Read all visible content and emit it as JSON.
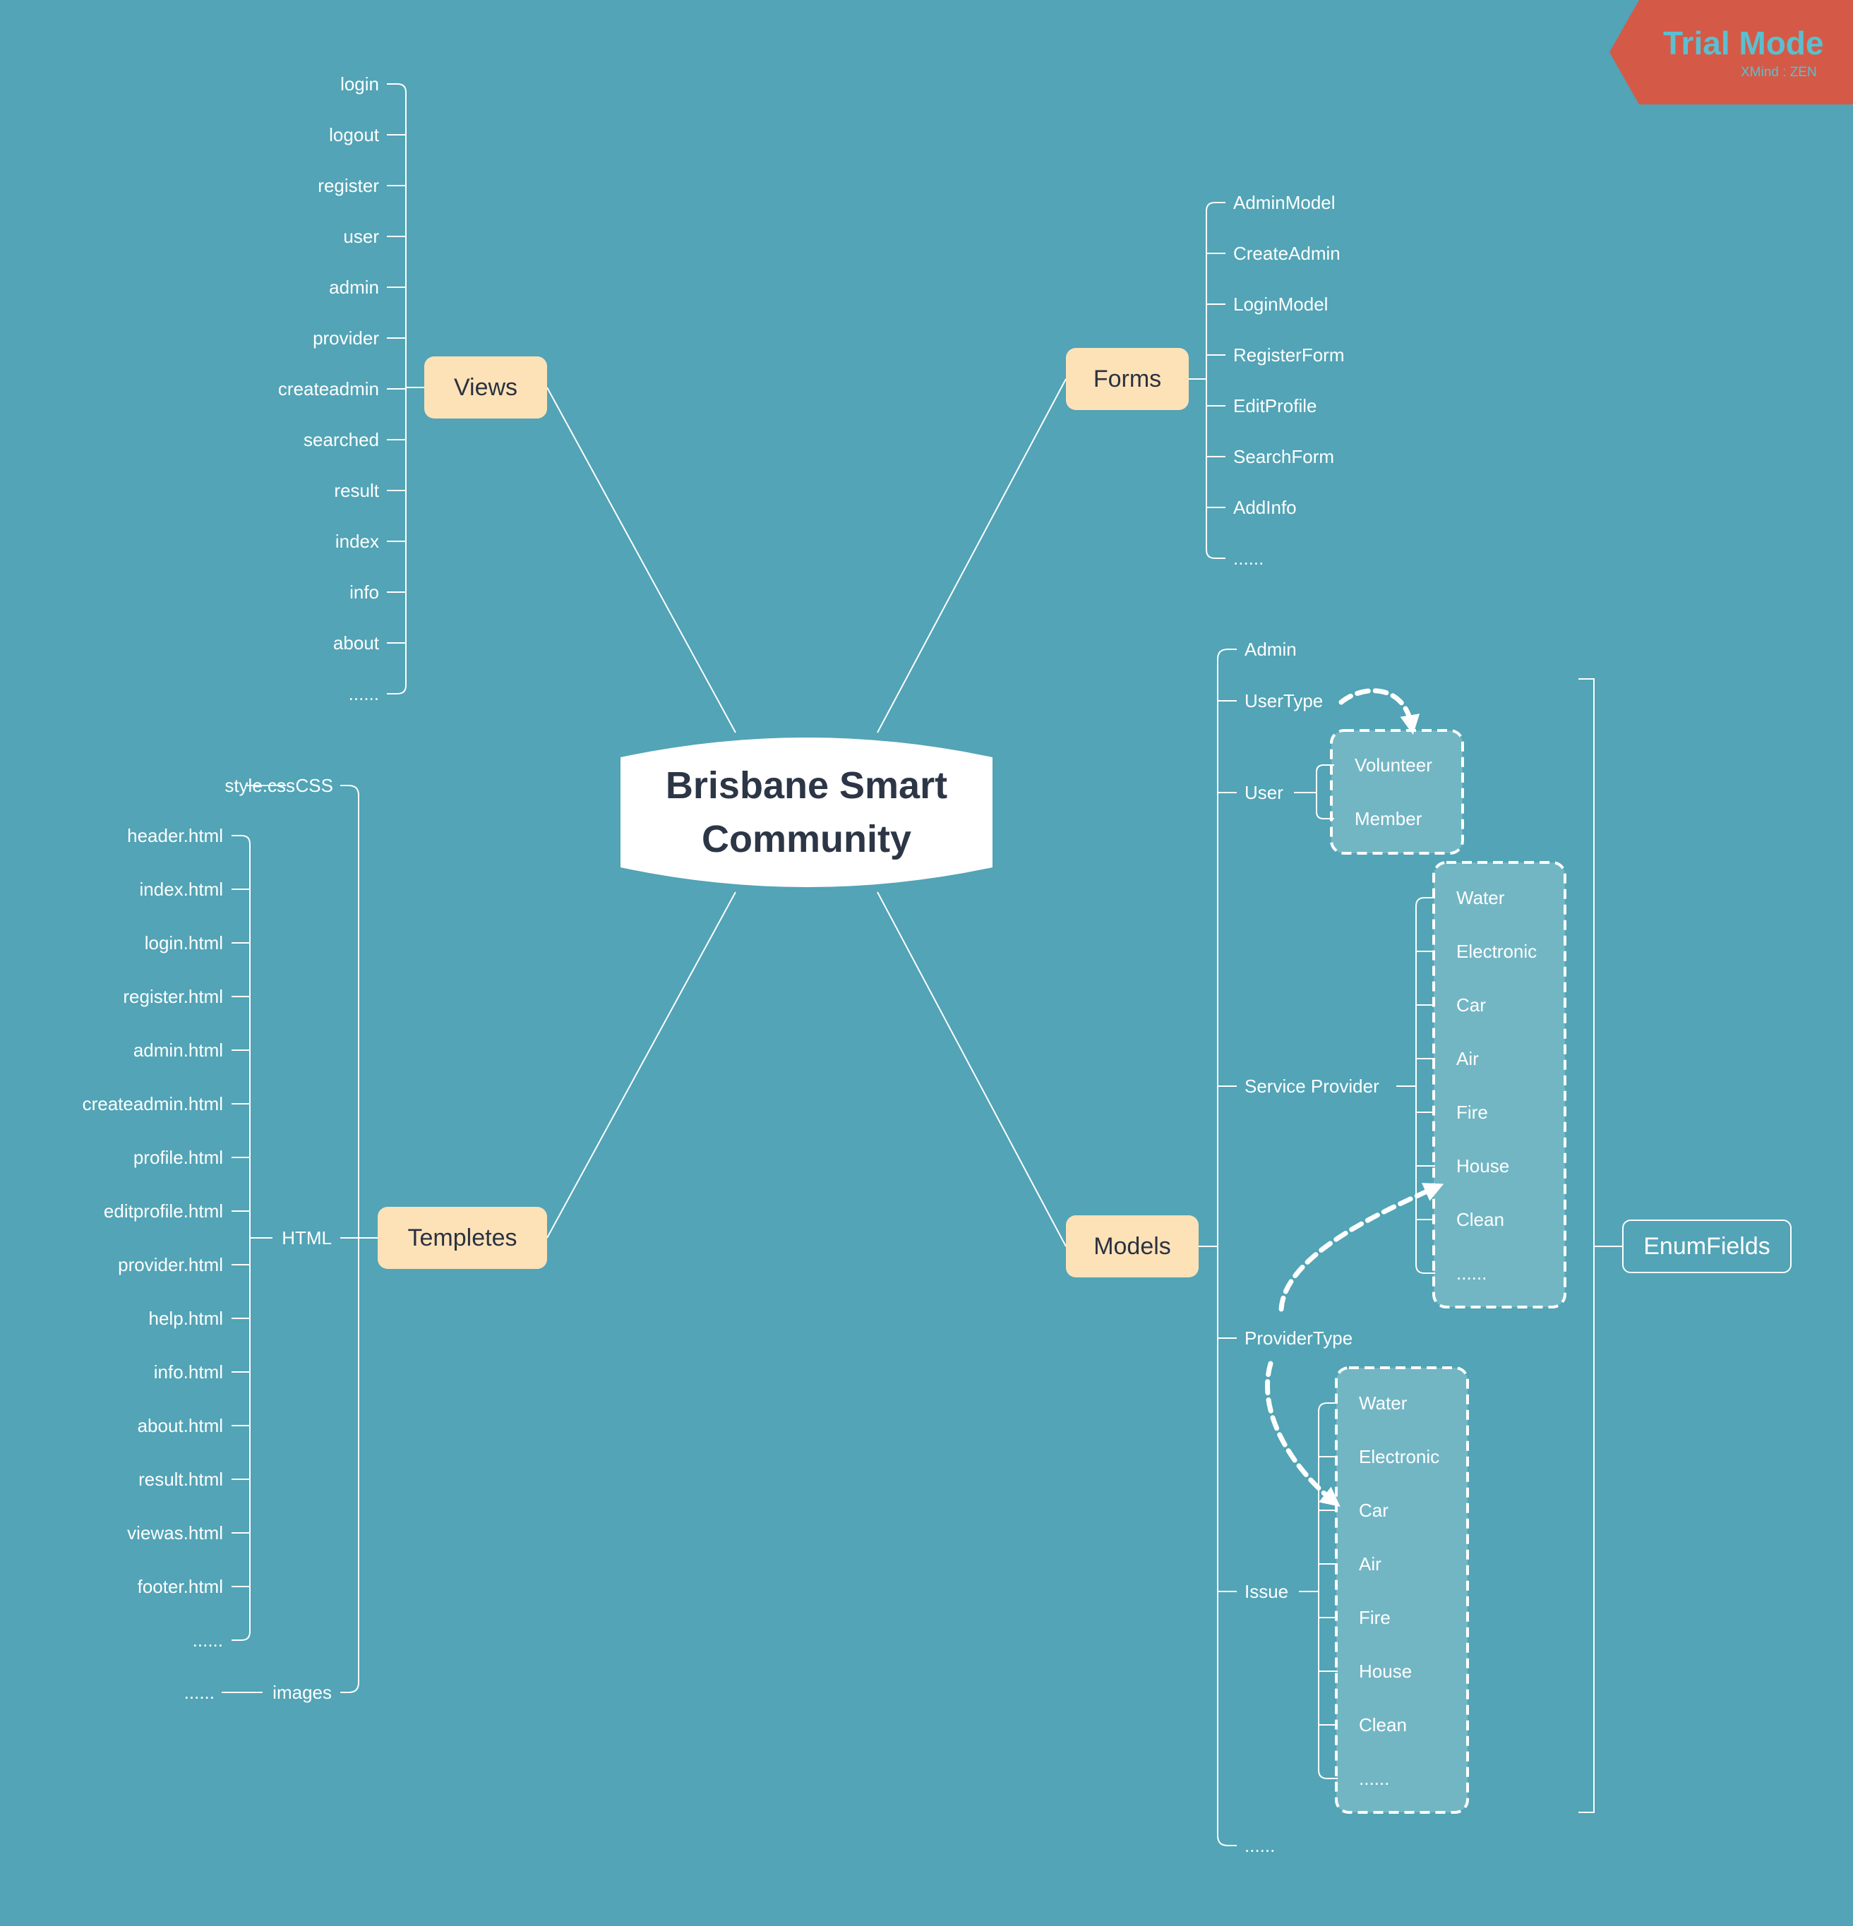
{
  "colors": {
    "background": "#52a4b6",
    "branch_fill": "#fde2b8",
    "central_fill": "#ffffff",
    "line": "#ffffff",
    "enum_box_fill": "#72b6c4",
    "trial_banner": "#d45a47",
    "trial_text": "#5bbfcf"
  },
  "central": {
    "line1": "Brisbane Smart",
    "line2": "Community"
  },
  "views": {
    "label": "Views",
    "items": [
      "login",
      "logout",
      "register",
      "user",
      "admin",
      "provider",
      "createadmin",
      "searched",
      "result",
      "index",
      "info",
      "about",
      "......"
    ]
  },
  "forms": {
    "label": "Forms",
    "items": [
      "AdminModel",
      "CreateAdmin",
      "LoginModel",
      "RegisterForm",
      "EditProfile",
      "SearchForm",
      "AddInfo",
      "......"
    ]
  },
  "templetes": {
    "label": "Templetes",
    "css": {
      "label": "CSS",
      "file": "style.css"
    },
    "html": {
      "label": "HTML",
      "items": [
        "header.html",
        "index.html",
        "login.html",
        "register.html",
        "admin.html",
        "createadmin.html",
        "profile.html",
        "editprofile.html",
        "provider.html",
        "help.html",
        "info.html",
        "about.html",
        "result.html",
        "viewas.html",
        "footer.html",
        "......"
      ]
    },
    "images": {
      "label": "images",
      "child": "......"
    }
  },
  "models": {
    "label": "Models",
    "admin": "Admin",
    "usertype": "UserType",
    "user": {
      "label": "User",
      "children": [
        "Volunteer",
        "Member"
      ]
    },
    "service_provider": {
      "label": "Service Provider",
      "children": [
        "Water",
        "Electronic",
        "Car",
        "Air",
        "Fire",
        "House",
        "Clean",
        "......"
      ]
    },
    "providertype": "ProviderType",
    "issue": {
      "label": "Issue",
      "children": [
        "Water",
        "Electronic",
        "Car",
        "Air",
        "Fire",
        "House",
        "Clean",
        "......"
      ]
    },
    "more": "......",
    "enum_label": "EnumFields"
  },
  "trial": {
    "title": "Trial Mode",
    "subtitle": "XMind : ZEN"
  }
}
